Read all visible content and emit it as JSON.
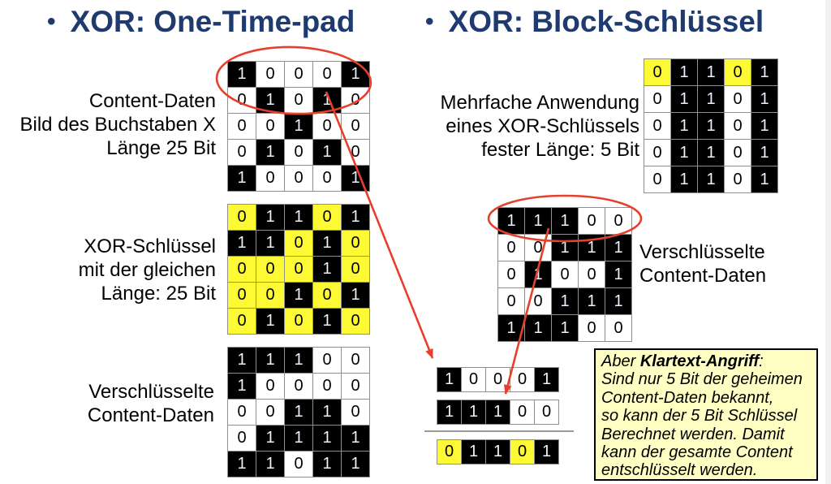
{
  "bullet_icon": "•",
  "colors": {
    "heading_navy": "#1e3a6e",
    "annotation_red": "#e6402d",
    "key_yellow": "#fdf935",
    "cell_black": "#000000",
    "note_background": "#ffffc4"
  },
  "left_section": {
    "heading": "XOR: One-Time-pad",
    "content_label": {
      "lines": [
        "Content-Daten",
        "Bild des Buchstaben X",
        "Länge 25 Bit"
      ]
    },
    "key_label": {
      "lines": [
        "XOR-Schlüssel",
        "mit der gleichen",
        "Länge: 25 Bit"
      ]
    },
    "encrypted_label": {
      "lines": [
        "Verschlüsselte",
        "Content-Daten"
      ]
    }
  },
  "right_section": {
    "heading": "XOR: Block-Schlüssel",
    "block_key_label": {
      "lines": [
        "Mehrfache Anwendung",
        "eines XOR-Schlüssels",
        "fester Länge: 5 Bit"
      ]
    },
    "encrypted_label": {
      "lines": [
        "Verschlüsselte",
        "Content-Daten"
      ]
    }
  },
  "grids": {
    "content_data": {
      "rows": [
        "10001",
        "01010",
        "00100",
        "01010",
        "10001"
      ],
      "zero_style": "white"
    },
    "xor_key": {
      "rows": [
        "01101",
        "11010",
        "00010",
        "00101",
        "01010"
      ],
      "zero_style": "yellow"
    },
    "encrypted_left": {
      "rows": [
        "11100",
        "10000",
        "00110",
        "01111",
        "11011"
      ],
      "zero_style": "white"
    },
    "block_key": {
      "rows": [
        "01101",
        "01101",
        "01101",
        "01101",
        "01101"
      ],
      "zero_styles": [
        "yellow",
        "white",
        "white",
        "white",
        "white"
      ]
    },
    "encrypted_right": {
      "rows": [
        "11100",
        "00111",
        "01001",
        "00111",
        "11100"
      ],
      "zero_style": "white"
    },
    "known_plain_row": {
      "rows": [
        "10001"
      ],
      "zero_style": "white"
    },
    "known_cipher_row": {
      "rows": [
        "11100"
      ],
      "zero_style": "white"
    },
    "derived_key_row": {
      "rows": [
        "01101"
      ],
      "zero_style": "yellow"
    }
  },
  "note": {
    "intro": "Aber ",
    "bold_term": "Klartext-Angriff",
    "after_bold": ":",
    "lines": [
      "Sind nur 5 Bit der geheimen",
      "Content-Daten bekannt,",
      "so kann der 5 Bit Schlüssel",
      "Berechnet werden. Damit",
      "kann der gesamte Content",
      "entschlüsselt werden."
    ]
  }
}
